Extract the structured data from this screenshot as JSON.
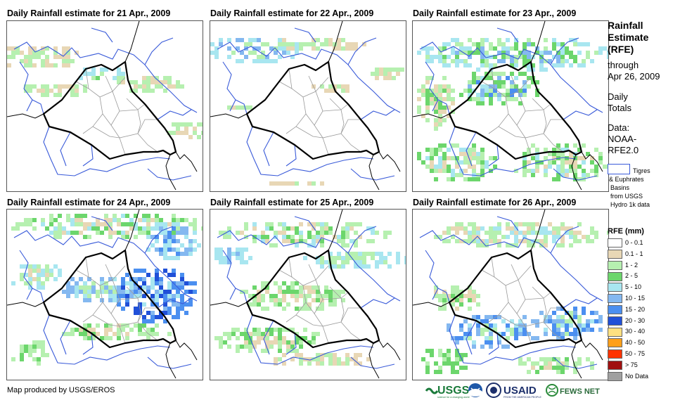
{
  "panels": [
    {
      "title": "Daily Rainfall estimate for 21 Apr., 2009"
    },
    {
      "title": "Daily Rainfall estimate for 22 Apr., 2009"
    },
    {
      "title": "Daily Rainfall estimate for 23 Apr., 2009"
    },
    {
      "title": "Daily Rainfall estimate for 24 Apr., 2009"
    },
    {
      "title": "Daily Rainfall estimate for 25 Apr., 2009"
    },
    {
      "title": "Daily Rainfall estimate for 26 Apr., 2009"
    }
  ],
  "sidebar": {
    "title_line1": "Rainfall",
    "title_line2": "Estimate",
    "title_line3": "(RFE)",
    "through": "through",
    "date": "Apr 26, 2009",
    "daily_line1": "Daily",
    "daily_line2": "Totals",
    "data_line1": "Data:",
    "data_line2": "NOAA-",
    "data_line3": "RFE2.0"
  },
  "basin_legend": {
    "line1": "Tigres",
    "line2": "& Euphrates",
    "line3": "Basins",
    "line4": "from USGS",
    "line5": "Hydro 1k data",
    "color": "#3a5bd9"
  },
  "rfe_legend": {
    "title": "RFE (mm)",
    "classes": [
      {
        "label": "0 - 0.1",
        "color": "#ffffff"
      },
      {
        "label": "0.1 - 1",
        "color": "#e8d7b5"
      },
      {
        "label": "1 - 2",
        "color": "#b6f0b0"
      },
      {
        "label": "2 - 5",
        "color": "#6cd66c"
      },
      {
        "label": "5 - 10",
        "color": "#a8e6f0"
      },
      {
        "label": "10 - 15",
        "color": "#84b8f0"
      },
      {
        "label": "15 - 20",
        "color": "#4b8ff0"
      },
      {
        "label": "20 - 30",
        "color": "#2050d8"
      },
      {
        "label": "30 - 40",
        "color": "#ffe080"
      },
      {
        "label": "40 - 50",
        "color": "#ff9f1a"
      },
      {
        "label": "50 - 75",
        "color": "#ff3300"
      },
      {
        "label": "> 75",
        "color": "#a01010"
      },
      {
        "label": "No Data",
        "color": "#a0a0a0"
      }
    ]
  },
  "footer": {
    "credit": "Map produced by USGS/EROS",
    "usgs_logo": "USGS",
    "usgs_tagline": "science for a changing world",
    "usaid_logo": "USAID",
    "usaid_tagline": "FROM THE AMERICAN PEOPLE",
    "fews_logo": "FEWS NET"
  },
  "colors": {
    "border_country": "#000000",
    "border_province": "#9a9a9a",
    "river_basin": "#3a5bd9"
  }
}
